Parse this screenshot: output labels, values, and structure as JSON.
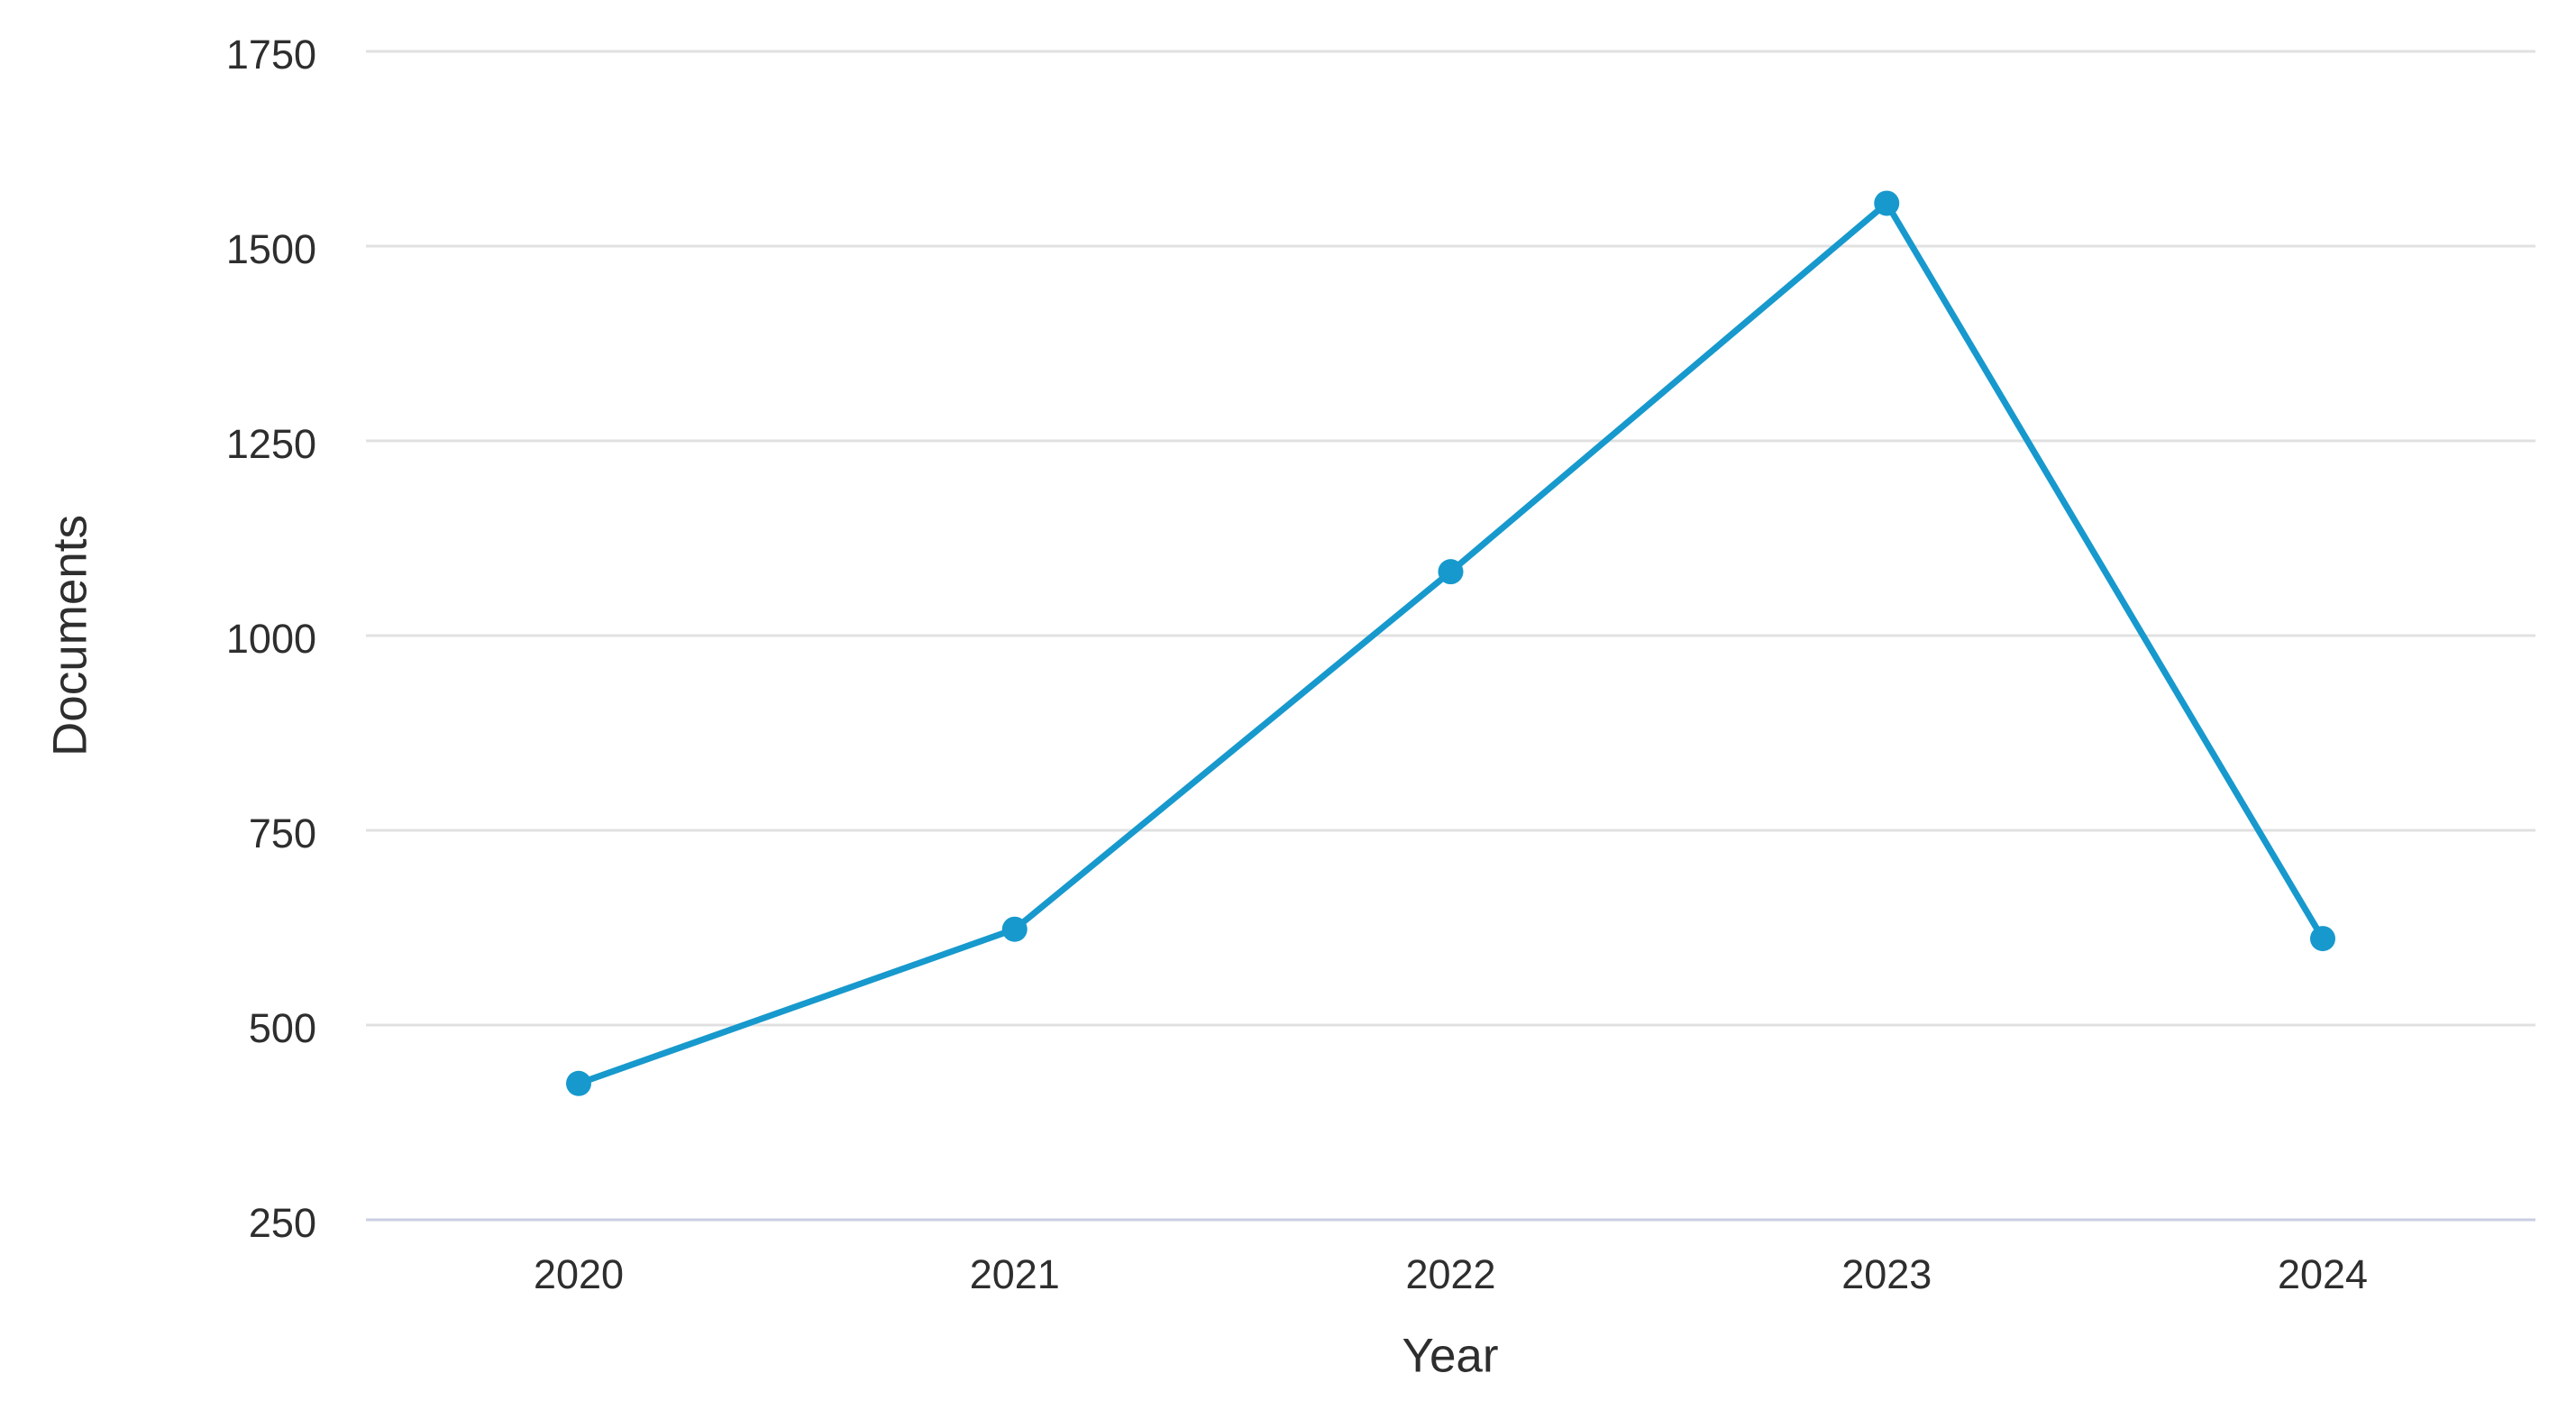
{
  "page": {
    "background": "#ffffff"
  },
  "chart_data": {
    "type": "line",
    "title": "",
    "xlabel": "Year",
    "ylabel": "Documents",
    "categories": [
      "2020",
      "2021",
      "2022",
      "2023",
      "2024"
    ],
    "series": [
      {
        "name": "Documents",
        "values": [
          425,
          623,
          1082,
          1555,
          611
        ]
      }
    ],
    "yticks": [
      1750,
      1500,
      1250,
      1000,
      750,
      500,
      250
    ],
    "ylim": [
      250,
      1750
    ],
    "grid": "horizontal",
    "legend": "none",
    "marker": "circle",
    "colors": {
      "line": "#1799cd",
      "gridline": "#e1e1e1",
      "axis_line": "#c9cfe3",
      "text": "#2e2e2e",
      "background": "#ffffff"
    }
  }
}
